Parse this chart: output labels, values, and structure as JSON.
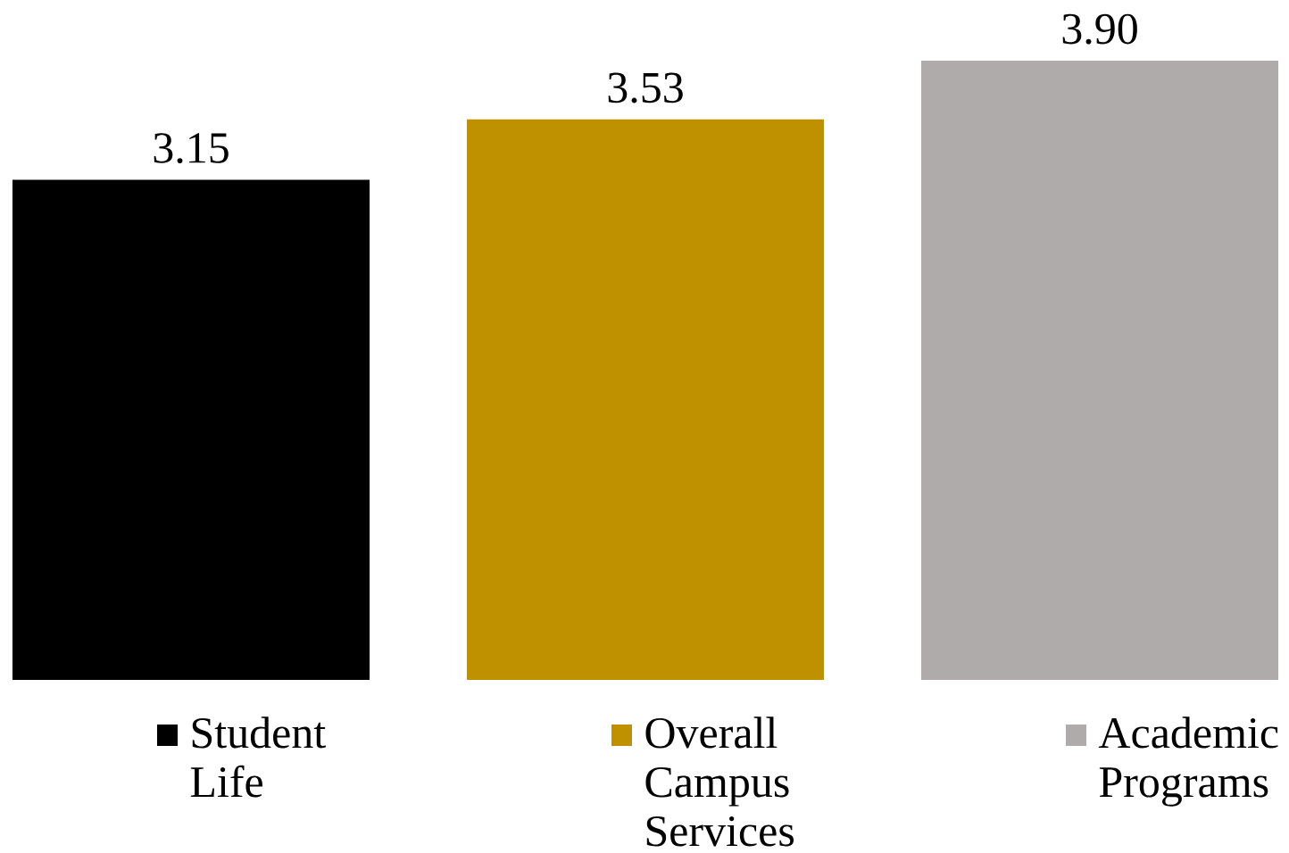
{
  "chart_data": {
    "type": "bar",
    "categories": [
      "Student Life",
      "Overall Campus Services",
      "Academic Programs"
    ],
    "values": [
      3.15,
      3.53,
      3.9
    ],
    "value_labels": [
      "3.15",
      "3.53",
      "3.90"
    ],
    "colors": [
      "#000000",
      "#bf9000",
      "#afabab"
    ]
  }
}
